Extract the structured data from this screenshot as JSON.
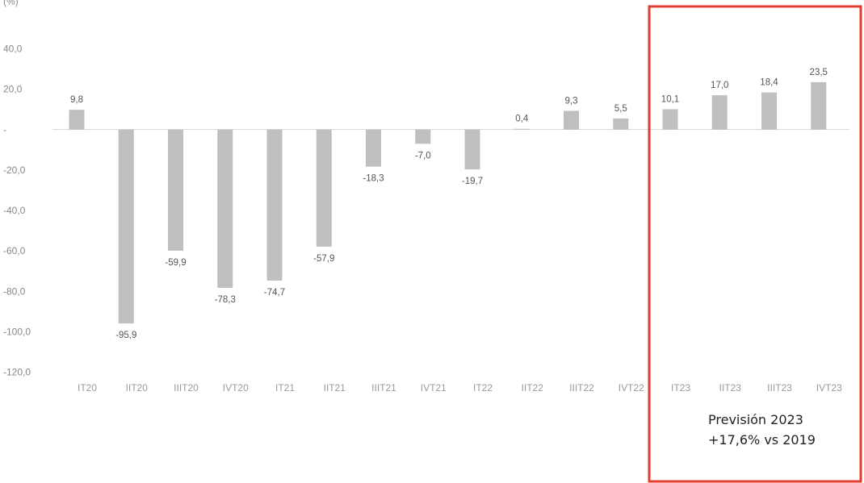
{
  "chart_data": {
    "type": "bar",
    "title": "",
    "xlabel": "",
    "ylabel": "",
    "ylim": [
      -120,
      40
    ],
    "yticks": [
      {
        "value": 40,
        "label": "40,0"
      },
      {
        "value": 20,
        "label": "20,0"
      },
      {
        "value": 0,
        "label": "-"
      },
      {
        "value": -20,
        "label": "-20,0"
      },
      {
        "value": -40,
        "label": "-40,0"
      },
      {
        "value": -60,
        "label": "-60,0"
      },
      {
        "value": -80,
        "label": "-80,0"
      },
      {
        "value": -100,
        "label": "-100,0"
      },
      {
        "value": -120,
        "label": "-120,0"
      }
    ],
    "categories": [
      "IT20",
      "IIT20",
      "IIIT20",
      "IVT20",
      "IT21",
      "IIT21",
      "IIIT21",
      "IVT21",
      "IT22",
      "IIT22",
      "IIIT22",
      "IVT22",
      "IT23",
      "IIT23",
      "IIIT23",
      "IVT23"
    ],
    "values": [
      9.8,
      -95.9,
      -59.9,
      -78.3,
      -74.7,
      -57.9,
      -18.3,
      -7.0,
      -19.7,
      0.4,
      9.3,
      5.5,
      10.1,
      17.0,
      18.4,
      23.5
    ],
    "value_labels": [
      "9,8",
      "-95,9",
      "-59,9",
      "-78,3",
      "-74,7",
      "-57,9",
      "-18,3",
      "-7,0",
      "-19,7",
      "0,4",
      "9,3",
      "5,5",
      "10,1",
      "17,0",
      "18,4",
      "23,5"
    ],
    "grid": false,
    "bar_color": "#bfbfbf",
    "highlight": {
      "from_category": "IT23",
      "to_category": "IVT23",
      "border_color": "#e03c31",
      "note_lines": [
        "Previsión 2023",
        "+17,6% vs 2019"
      ]
    },
    "unit_label": "(%) "
  }
}
